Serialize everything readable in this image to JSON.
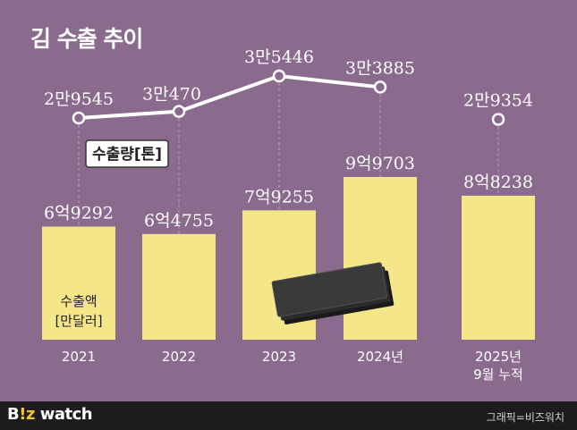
{
  "title": "김 수출 추이",
  "footer": {
    "brand_prefix": "B",
    "brand_accent": "!z",
    "brand_suffix": " watch",
    "credit": "그래픽=비즈워치"
  },
  "colors": {
    "background": "#8a6b8e",
    "bar": "#f5e68a",
    "line": "#ffffff",
    "footer": "#1c1c1c",
    "brand_accent": "#f2c230"
  },
  "chart_data": {
    "type": "bar+line",
    "categories": [
      "2021",
      "2022",
      "2023",
      "2024년",
      "2025년\n9월 누적"
    ],
    "bar_series": {
      "label_lines": [
        "수출액",
        "[만달러]"
      ],
      "values": [
        69292,
        64755,
        79255,
        99703,
        88238
      ],
      "value_labels": [
        "6억9292",
        "6억4755",
        "7억9255",
        "9억9703",
        "8억8238"
      ]
    },
    "line_series": {
      "name": "수출량[톤]",
      "values": [
        29545,
        30470,
        35446,
        33885,
        29354
      ],
      "value_labels": [
        "2만9545",
        "3만470",
        "3만5446",
        "3만3885",
        "2만9354"
      ],
      "connected_through_index": 3
    },
    "grid": false,
    "legend": "inline-label",
    "image": "seaweed-sheets-illustration"
  }
}
